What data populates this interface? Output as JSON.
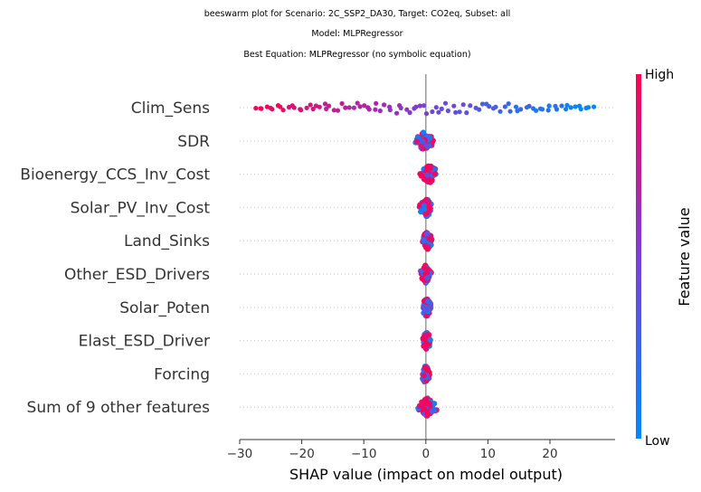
{
  "titles": {
    "line1": "beeswarm plot for Scenario: 2C_SSP2_DA30, Target: CO2eq, Subset: all",
    "line2": "Model: MLPRegressor",
    "line3": "Best Equation: MLPRegressor (no symbolic equation)"
  },
  "colorbar": {
    "high_label": "High",
    "low_label": "Low",
    "title": "Feature value",
    "low_color": "#008afb",
    "mid_color": "#7b3fd6",
    "high_color": "#ff0052"
  },
  "chart_data": {
    "type": "scatter",
    "subtype": "beeswarm",
    "xlabel": "SHAP value (impact on model output)",
    "xlim": [
      -30,
      30
    ],
    "xticks": [
      -30,
      -20,
      -10,
      0,
      10,
      20
    ],
    "xtick_labels": [
      "−30",
      "−20",
      "−10",
      "0",
      "10",
      "20"
    ],
    "features": [
      {
        "name": "Clim_Sens",
        "shap_min": -27.5,
        "shap_max": 27.0,
        "spread": "wide"
      },
      {
        "name": "SDR",
        "shap_min": -2.0,
        "shap_max": 1.5,
        "spread": "narrow"
      },
      {
        "name": "Bioenergy_CCS_Inv_Cost",
        "shap_min": -1.0,
        "shap_max": 2.2,
        "spread": "narrow"
      },
      {
        "name": "Solar_PV_Inv_Cost",
        "shap_min": -1.2,
        "shap_max": 1.4,
        "spread": "narrow"
      },
      {
        "name": "Land_Sinks",
        "shap_min": -0.8,
        "shap_max": 1.2,
        "spread": "narrow"
      },
      {
        "name": "Other_ESD_Drivers",
        "shap_min": -1.0,
        "shap_max": 1.0,
        "spread": "narrow"
      },
      {
        "name": "Solar_Poten",
        "shap_min": -0.8,
        "shap_max": 1.0,
        "spread": "narrow"
      },
      {
        "name": "Elast_ESD_Driver",
        "shap_min": -0.8,
        "shap_max": 1.0,
        "spread": "narrow"
      },
      {
        "name": "Forcing",
        "shap_min": -0.9,
        "shap_max": 0.8,
        "spread": "narrow"
      },
      {
        "name": "Sum of 9 other features",
        "shap_min": -1.5,
        "shap_max": 2.0,
        "spread": "narrow"
      }
    ]
  }
}
